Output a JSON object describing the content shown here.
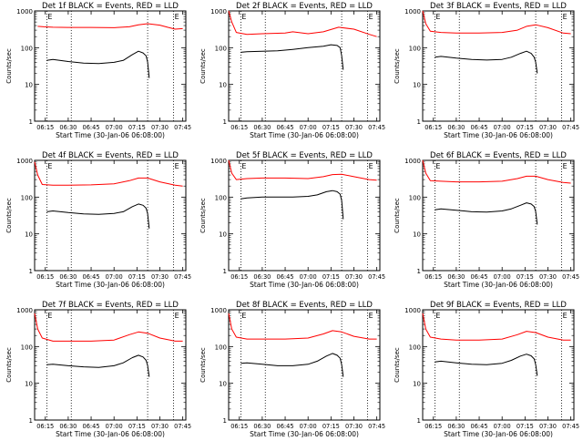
{
  "chart_data": [
    {
      "type": "line",
      "title": "Det 1f BLACK = Events, RED = LLD",
      "xlabel": "Start Time (30-Jan-06 06:08:00)",
      "ylabel": "Counts/sec",
      "yscale": "log",
      "ylim": [
        1,
        1000
      ],
      "xlim": [
        "06:08",
        "07:47"
      ],
      "xticks": [
        "06:15",
        "06:30",
        "06:45",
        "07:00",
        "07:15",
        "07:30",
        "07:45"
      ],
      "yticks": [
        "1",
        "10",
        "100",
        "1000"
      ],
      "markers": [
        {
          "label": "E",
          "x": "06:16"
        },
        {
          "label": "E",
          "x": "07:39"
        }
      ],
      "dotted_lines": [
        "06:16",
        "06:32",
        "07:22",
        "07:39"
      ],
      "grid": false,
      "series": [
        {
          "color": "#ff0000",
          "x": [
            "06:10",
            "06:14",
            "06:20",
            "06:30",
            "06:45",
            "07:00",
            "07:10",
            "07:16",
            "07:22",
            "07:30",
            "07:35",
            "07:40",
            "07:45"
          ],
          "y": [
            380,
            370,
            360,
            355,
            355,
            350,
            370,
            420,
            450,
            410,
            360,
            320,
            330
          ]
        },
        {
          "color": "#000000",
          "x": [
            "06:16",
            "06:20",
            "06:30",
            "06:40",
            "06:50",
            "07:00",
            "07:06",
            "07:12",
            "07:16",
            "07:19",
            "07:21",
            "07:22",
            "07:23"
          ],
          "y": [
            45,
            48,
            42,
            38,
            37,
            40,
            45,
            65,
            80,
            72,
            60,
            40,
            15
          ]
        }
      ]
    },
    {
      "type": "line",
      "title": "Det 2f BLACK = Events, RED = LLD",
      "xlabel": "Start Time (30-Jan-06 06:08:00)",
      "ylabel": "Counts/sec",
      "yscale": "log",
      "ylim": [
        1,
        1000
      ],
      "xlim": [
        "06:08",
        "07:47"
      ],
      "xticks": [
        "06:15",
        "06:30",
        "06:45",
        "07:00",
        "07:15",
        "07:30",
        "07:45"
      ],
      "yticks": [
        "1",
        "10",
        "100",
        "1000"
      ],
      "markers": [
        {
          "label": "E",
          "x": "06:16"
        },
        {
          "label": "E",
          "x": "07:39"
        }
      ],
      "dotted_lines": [
        "06:16",
        "06:32",
        "07:22",
        "07:39"
      ],
      "grid": false,
      "series": [
        {
          "color": "#ff0000",
          "x": [
            "06:08",
            "06:10",
            "06:13",
            "06:20",
            "06:30",
            "06:45",
            "06:50",
            "07:00",
            "07:10",
            "07:20",
            "07:30",
            "07:40",
            "07:45"
          ],
          "y": [
            1000,
            500,
            260,
            230,
            240,
            250,
            270,
            240,
            270,
            360,
            320,
            230,
            200
          ]
        },
        {
          "color": "#000000",
          "x": [
            "06:16",
            "06:20",
            "06:30",
            "06:40",
            "06:50",
            "07:00",
            "07:10",
            "07:15",
            "07:19",
            "07:21",
            "07:22",
            "07:23"
          ],
          "y": [
            75,
            78,
            80,
            82,
            90,
            100,
            110,
            120,
            115,
            100,
            60,
            25
          ]
        }
      ]
    },
    {
      "type": "line",
      "title": "Det 3f BLACK = Events, RED = LLD",
      "xlabel": "Start Time (30-Jan-06 06:08:00)",
      "ylabel": "Counts/sec",
      "yscale": "log",
      "ylim": [
        1,
        1000
      ],
      "xlim": [
        "06:08",
        "07:47"
      ],
      "xticks": [
        "06:15",
        "06:30",
        "06:45",
        "07:00",
        "07:15",
        "07:30",
        "07:45"
      ],
      "yticks": [
        "1",
        "10",
        "100",
        "1000"
      ],
      "markers": [
        {
          "label": "E",
          "x": "06:16"
        },
        {
          "label": "E",
          "x": "07:39"
        }
      ],
      "dotted_lines": [
        "06:16",
        "06:32",
        "07:22",
        "07:39"
      ],
      "grid": false,
      "series": [
        {
          "color": "#ff0000",
          "x": [
            "06:08",
            "06:10",
            "06:13",
            "06:20",
            "06:30",
            "06:45",
            "07:00",
            "07:10",
            "07:16",
            "07:22",
            "07:30",
            "07:40",
            "07:45"
          ],
          "y": [
            1000,
            450,
            280,
            260,
            250,
            250,
            260,
            300,
            380,
            420,
            350,
            250,
            240
          ]
        },
        {
          "color": "#000000",
          "x": [
            "06:16",
            "06:20",
            "06:30",
            "06:40",
            "06:50",
            "07:00",
            "07:06",
            "07:12",
            "07:16",
            "07:19",
            "07:21",
            "07:22",
            "07:23"
          ],
          "y": [
            55,
            58,
            52,
            48,
            46,
            48,
            55,
            70,
            80,
            70,
            55,
            40,
            20
          ]
        }
      ]
    },
    {
      "type": "line",
      "title": "Det 4f BLACK = Events, RED = LLD",
      "xlabel": "Start Time (30-Jan-06 06:08:00)",
      "ylabel": "Counts/sec",
      "yscale": "log",
      "ylim": [
        1,
        1000
      ],
      "xlim": [
        "06:08",
        "07:47"
      ],
      "xticks": [
        "06:15",
        "06:30",
        "06:45",
        "07:00",
        "07:15",
        "07:30",
        "07:45"
      ],
      "yticks": [
        "1",
        "10",
        "100",
        "1000"
      ],
      "markers": [
        {
          "label": "E",
          "x": "06:16"
        },
        {
          "label": "E",
          "x": "07:39"
        }
      ],
      "dotted_lines": [
        "06:16",
        "06:32",
        "07:22",
        "07:39"
      ],
      "grid": false,
      "series": [
        {
          "color": "#ff0000",
          "x": [
            "06:08",
            "06:10",
            "06:13",
            "06:20",
            "06:30",
            "06:45",
            "07:00",
            "07:10",
            "07:16",
            "07:22",
            "07:30",
            "07:40",
            "07:45"
          ],
          "y": [
            900,
            400,
            220,
            210,
            210,
            215,
            230,
            280,
            330,
            330,
            260,
            210,
            200
          ]
        },
        {
          "color": "#000000",
          "x": [
            "06:16",
            "06:20",
            "06:30",
            "06:40",
            "06:50",
            "07:00",
            "07:06",
            "07:12",
            "07:16",
            "07:19",
            "07:21",
            "07:22",
            "07:23"
          ],
          "y": [
            40,
            42,
            38,
            35,
            34,
            36,
            40,
            55,
            65,
            60,
            50,
            35,
            14
          ]
        }
      ]
    },
    {
      "type": "line",
      "title": "Det 5f BLACK = Events, RED = LLD",
      "xlabel": "Start Time (30-Jan-06 06:08:00)",
      "ylabel": "Counts/sec",
      "yscale": "log",
      "ylim": [
        1,
        1000
      ],
      "xlim": [
        "06:08",
        "07:47"
      ],
      "xticks": [
        "06:15",
        "06:30",
        "06:45",
        "07:00",
        "07:15",
        "07:30",
        "07:45"
      ],
      "yticks": [
        "1",
        "10",
        "100",
        "1000"
      ],
      "markers": [
        {
          "label": "E",
          "x": "06:16"
        },
        {
          "label": "E",
          "x": "07:39"
        }
      ],
      "dotted_lines": [
        "06:16",
        "06:32",
        "07:22",
        "07:39"
      ],
      "grid": false,
      "series": [
        {
          "color": "#ff0000",
          "x": [
            "06:08",
            "06:10",
            "06:13",
            "06:20",
            "06:30",
            "06:45",
            "07:00",
            "07:10",
            "07:16",
            "07:22",
            "07:30",
            "07:40",
            "07:45"
          ],
          "y": [
            1000,
            450,
            300,
            320,
            330,
            330,
            320,
            360,
            410,
            420,
            360,
            300,
            290
          ]
        },
        {
          "color": "#000000",
          "x": [
            "06:16",
            "06:20",
            "06:30",
            "06:40",
            "06:50",
            "07:00",
            "07:06",
            "07:12",
            "07:16",
            "07:19",
            "07:21",
            "07:22",
            "07:23"
          ],
          "y": [
            90,
            95,
            100,
            100,
            100,
            105,
            115,
            140,
            150,
            140,
            120,
            80,
            25
          ]
        }
      ]
    },
    {
      "type": "line",
      "title": "Det 6f BLACK = Events, RED = LLD",
      "xlabel": "Start Time (30-Jan-06 06:08:00)",
      "ylabel": "Counts/sec",
      "yscale": "log",
      "ylim": [
        1,
        1000
      ],
      "xlim": [
        "06:08",
        "07:47"
      ],
      "xticks": [
        "06:15",
        "06:30",
        "06:45",
        "07:00",
        "07:15",
        "07:30",
        "07:45"
      ],
      "yticks": [
        "1",
        "10",
        "100",
        "1000"
      ],
      "markers": [
        {
          "label": "E",
          "x": "06:16"
        },
        {
          "label": "E",
          "x": "07:39"
        }
      ],
      "dotted_lines": [
        "06:16",
        "06:32",
        "07:22",
        "07:39"
      ],
      "grid": false,
      "series": [
        {
          "color": "#ff0000",
          "x": [
            "06:08",
            "06:10",
            "06:13",
            "06:20",
            "06:30",
            "06:45",
            "07:00",
            "07:10",
            "07:16",
            "07:22",
            "07:30",
            "07:40",
            "07:45"
          ],
          "y": [
            1000,
            450,
            280,
            270,
            260,
            260,
            270,
            320,
            370,
            370,
            300,
            250,
            240
          ]
        },
        {
          "color": "#000000",
          "x": [
            "06:16",
            "06:20",
            "06:30",
            "06:40",
            "06:50",
            "07:00",
            "07:06",
            "07:12",
            "07:16",
            "07:19",
            "07:21",
            "07:22",
            "07:23"
          ],
          "y": [
            45,
            48,
            44,
            40,
            39,
            42,
            48,
            60,
            70,
            65,
            55,
            40,
            18
          ]
        }
      ]
    },
    {
      "type": "line",
      "title": "Det 7f BLACK = Events, RED = LLD",
      "xlabel": "Start Time (30-Jan-06 06:08:00)",
      "ylabel": "Counts/sec",
      "yscale": "log",
      "ylim": [
        1,
        1000
      ],
      "xlim": [
        "06:08",
        "07:47"
      ],
      "xticks": [
        "06:15",
        "06:30",
        "06:45",
        "07:00",
        "07:15",
        "07:30",
        "07:45"
      ],
      "yticks": [
        "1",
        "10",
        "100",
        "1000"
      ],
      "markers": [
        {
          "label": "E",
          "x": "06:16"
        },
        {
          "label": "E",
          "x": "07:39"
        }
      ],
      "dotted_lines": [
        "06:16",
        "06:32",
        "07:22",
        "07:39"
      ],
      "grid": false,
      "series": [
        {
          "color": "#ff0000",
          "x": [
            "06:08",
            "06:10",
            "06:13",
            "06:20",
            "06:30",
            "06:45",
            "07:00",
            "07:10",
            "07:16",
            "07:22",
            "07:30",
            "07:40",
            "07:45"
          ],
          "y": [
            800,
            300,
            170,
            140,
            140,
            140,
            150,
            210,
            250,
            230,
            170,
            140,
            140
          ]
        },
        {
          "color": "#000000",
          "x": [
            "06:16",
            "06:20",
            "06:30",
            "06:40",
            "06:50",
            "07:00",
            "07:06",
            "07:12",
            "07:16",
            "07:19",
            "07:21",
            "07:22",
            "07:23"
          ],
          "y": [
            32,
            33,
            30,
            28,
            27,
            30,
            36,
            50,
            58,
            52,
            42,
            30,
            15
          ]
        }
      ]
    },
    {
      "type": "line",
      "title": "Det 8f BLACK = Events, RED = LLD",
      "xlabel": "Start Time (30-Jan-06 06:08:00)",
      "ylabel": "Counts/sec",
      "yscale": "log",
      "ylim": [
        1,
        1000
      ],
      "xlim": [
        "06:08",
        "07:47"
      ],
      "xticks": [
        "06:15",
        "06:30",
        "06:45",
        "07:00",
        "07:15",
        "07:30",
        "07:45"
      ],
      "yticks": [
        "1",
        "10",
        "100",
        "1000"
      ],
      "markers": [
        {
          "label": "E",
          "x": "06:16"
        },
        {
          "label": "E",
          "x": "07:39"
        }
      ],
      "dotted_lines": [
        "06:16",
        "06:32",
        "07:22",
        "07:39"
      ],
      "grid": false,
      "series": [
        {
          "color": "#ff0000",
          "x": [
            "06:08",
            "06:10",
            "06:13",
            "06:20",
            "06:30",
            "06:45",
            "07:00",
            "07:10",
            "07:16",
            "07:22",
            "07:30",
            "07:40",
            "07:45"
          ],
          "y": [
            800,
            300,
            180,
            160,
            160,
            160,
            170,
            220,
            270,
            250,
            190,
            160,
            160
          ]
        },
        {
          "color": "#000000",
          "x": [
            "06:16",
            "06:20",
            "06:30",
            "06:40",
            "06:50",
            "07:00",
            "07:06",
            "07:12",
            "07:16",
            "07:19",
            "07:21",
            "07:22",
            "07:23"
          ],
          "y": [
            35,
            36,
            33,
            30,
            30,
            33,
            40,
            55,
            65,
            58,
            48,
            32,
            15
          ]
        }
      ]
    },
    {
      "type": "line",
      "title": "Det 9f BLACK = Events, RED = LLD",
      "xlabel": "Start Time (30-Jan-06 06:08:00)",
      "ylabel": "Counts/sec",
      "yscale": "log",
      "ylim": [
        1,
        1000
      ],
      "xlim": [
        "06:08",
        "07:47"
      ],
      "xticks": [
        "06:15",
        "06:30",
        "06:45",
        "07:00",
        "07:15",
        "07:30",
        "07:45"
      ],
      "yticks": [
        "1",
        "10",
        "100",
        "1000"
      ],
      "markers": [
        {
          "label": "E",
          "x": "06:16"
        },
        {
          "label": "E",
          "x": "07:39"
        }
      ],
      "dotted_lines": [
        "06:16",
        "06:32",
        "07:22",
        "07:39"
      ],
      "grid": false,
      "series": [
        {
          "color": "#ff0000",
          "x": [
            "06:08",
            "06:10",
            "06:13",
            "06:20",
            "06:30",
            "06:45",
            "07:00",
            "07:10",
            "07:16",
            "07:22",
            "07:30",
            "07:40",
            "07:45"
          ],
          "y": [
            800,
            300,
            180,
            160,
            150,
            150,
            160,
            210,
            260,
            240,
            180,
            150,
            150
          ]
        },
        {
          "color": "#000000",
          "x": [
            "06:16",
            "06:20",
            "06:30",
            "06:40",
            "06:50",
            "07:00",
            "07:06",
            "07:12",
            "07:16",
            "07:19",
            "07:21",
            "07:22",
            "07:23"
          ],
          "y": [
            38,
            40,
            36,
            33,
            32,
            35,
            42,
            55,
            62,
            56,
            46,
            32,
            16
          ]
        }
      ]
    }
  ]
}
